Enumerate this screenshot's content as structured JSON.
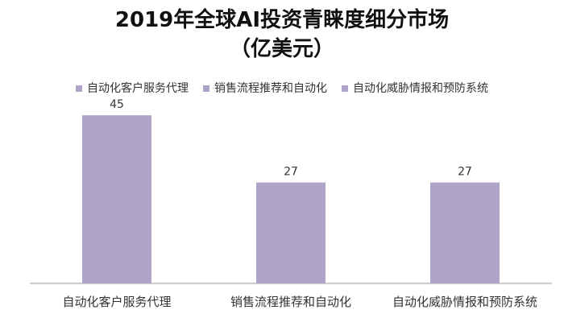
{
  "chart_data": {
    "type": "bar",
    "title": "2019年全球AI投资青睐度细分市场",
    "subtitle": "（亿美元）",
    "categories": [
      "自动化客户服务代理",
      "销售流程推荐和自动化",
      "自动化威胁情报和预防系统"
    ],
    "values": [
      45,
      27,
      27
    ],
    "xlabel": "",
    "ylabel": "",
    "ylim": [
      0,
      50
    ],
    "grid": false,
    "legend_placement": "top",
    "bar_color": "#b0a3c9"
  }
}
